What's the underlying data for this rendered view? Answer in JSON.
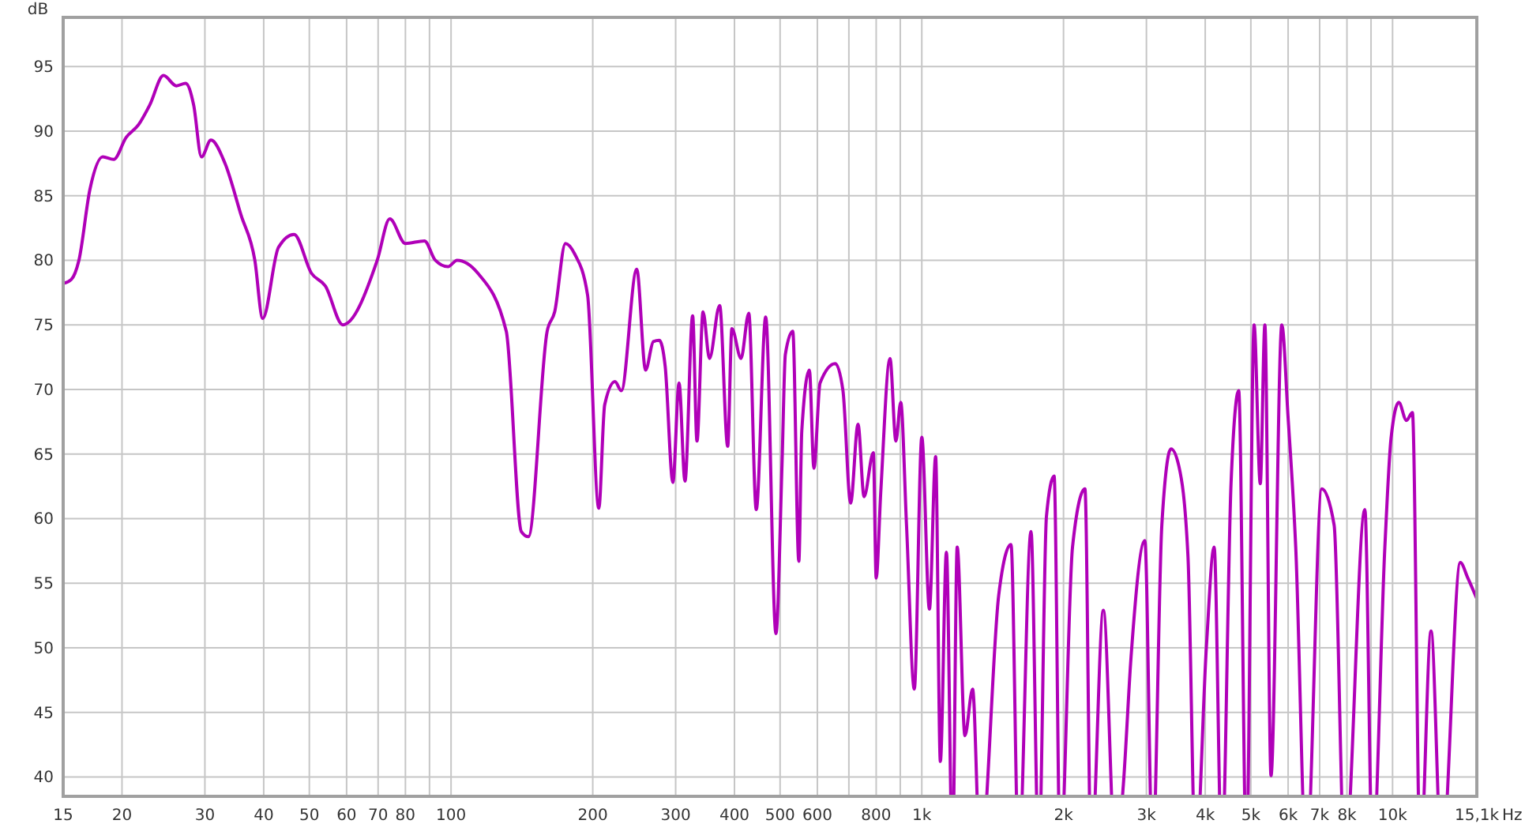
{
  "chart_data": {
    "type": "line",
    "ylabel": "dB",
    "xlabel": "Hz",
    "log": "x",
    "grid": true,
    "color": "#b000b8",
    "xlim": [
      15,
      15100
    ],
    "ylim": [
      38.5,
      98.8
    ],
    "xticks": [
      15,
      20,
      30,
      40,
      50,
      60,
      70,
      80,
      {
        "value": 90,
        "label": null
      },
      100,
      200,
      300,
      400,
      500,
      600,
      {
        "value": 700,
        "label": null
      },
      800,
      {
        "value": 900,
        "label": null
      },
      {
        "value": 1000,
        "label": "1k"
      },
      {
        "value": 2000,
        "label": "2k"
      },
      {
        "value": 3000,
        "label": "3k"
      },
      {
        "value": 4000,
        "label": "4k"
      },
      {
        "value": 5000,
        "label": "5k"
      },
      {
        "value": 6000,
        "label": "6k"
      },
      {
        "value": 7000,
        "label": "7k"
      },
      {
        "value": 8000,
        "label": "8k"
      },
      {
        "value": 9000,
        "label": null
      },
      {
        "value": 10000,
        "label": "10k"
      },
      {
        "value": 15100,
        "label": "15,1k"
      }
    ],
    "yticks": [
      40,
      45,
      50,
      55,
      60,
      65,
      70,
      75,
      80,
      85,
      90,
      95
    ],
    "x": [
      15,
      15.6,
      16.2,
      17.1,
      18.2,
      19.2,
      20.4,
      21.7,
      22.9,
      24.5,
      26.1,
      27.3,
      28.4,
      29.5,
      30.9,
      33.1,
      35.8,
      38.3,
      39.8,
      43,
      46.4,
      50.5,
      54.1,
      58.9,
      69.7,
      74.1,
      80,
      87.8,
      92.6,
      98.5,
      103,
      114,
      131,
      141,
      146,
      160,
      166,
      175,
      183,
      195,
      206,
      212,
      223,
      230,
      248,
      259,
      269,
      277,
      285,
      296,
      305,
      314,
      326,
      333,
      343,
      354,
      372,
      387,
      395,
      413,
      429,
      445,
      466,
      490,
      505,
      513,
      532,
      548,
      556,
      577,
      590,
      608,
      655,
      680,
      706,
      732,
      754,
      789,
      800,
      818,
      856,
      881,
      902,
      928,
      964,
      1000,
      1038,
      1070,
      1095,
      1128,
      1162,
      1189,
      1235,
      1282,
      1331,
      1457,
      1547,
      1606,
      1706,
      1772,
      1840,
      1910,
      1968,
      2090,
      2221,
      2289,
      2430,
      2581,
      2680,
      2783,
      2977,
      3092,
      3235,
      3384,
      3514,
      3676,
      3816,
      4023,
      4178,
      4337,
      4538,
      4712,
      4893,
      5080,
      5236,
      5355,
      5518,
      5818,
      5995,
      6227,
      6561,
      7074,
      7514,
      7917,
      8733,
      9068,
      9630,
      9925,
      10310,
      10700,
      11020,
      11450,
      12070,
      12720,
      13930,
      14450,
      15100
    ],
    "values": [
      78.2,
      78.5,
      80,
      85.5,
      88,
      87.8,
      89.5,
      90.5,
      92,
      94.3,
      93.5,
      93.7,
      92,
      88,
      89.3,
      87.5,
      83.5,
      80,
      75.5,
      81,
      82,
      79,
      78,
      75,
      80,
      83.2,
      81.3,
      81.5,
      80,
      79.5,
      80,
      79,
      74.5,
      59,
      58.6,
      74.5,
      76,
      81.3,
      80.5,
      77.3,
      60.8,
      68.8,
      70.6,
      69.9,
      79.3,
      71.5,
      73.7,
      73.8,
      71.8,
      62.8,
      70.5,
      62.9,
      75.7,
      66,
      76,
      72.4,
      76.5,
      65.6,
      74.7,
      72.4,
      75.9,
      60.7,
      75.6,
      51.1,
      64.5,
      72.7,
      74.5,
      56.7,
      66.8,
      71.5,
      63.9,
      70.5,
      72,
      69.9,
      61.2,
      67.3,
      61.7,
      65.1,
      55.4,
      62,
      72.4,
      66,
      69,
      59.5,
      46.8,
      66.3,
      53,
      64.8,
      41.2,
      57.4,
      null,
      57.8,
      43.2,
      46.8,
      null,
      54.1,
      58,
      null,
      59,
      null,
      60.2,
      63.3,
      null,
      57.8,
      62.3,
      null,
      52.9,
      null,
      39.4,
      49.3,
      58.3,
      null,
      59.5,
      65.4,
      64.1,
      57.1,
      null,
      50.1,
      57.8,
      null,
      62.7,
      69.9,
      null,
      75,
      62.7,
      75,
      40.1,
      75,
      68,
      57.8,
      null,
      62.3,
      59.5,
      null,
      60.7,
      null,
      57.8,
      66.2,
      69,
      67.6,
      68.2,
      null,
      51.3,
      null,
      56.6,
      55.4,
      53.8
    ]
  }
}
